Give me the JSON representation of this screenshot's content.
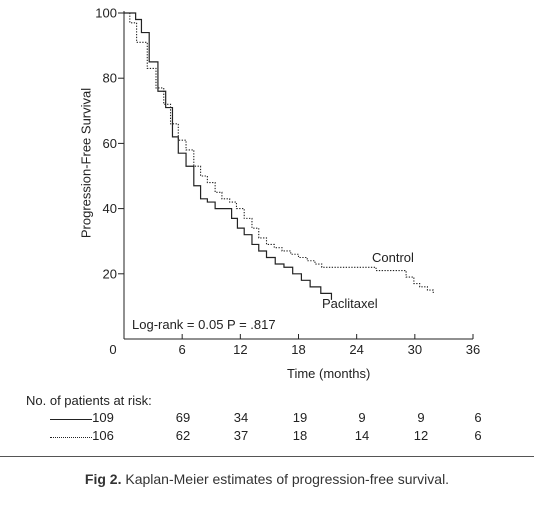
{
  "chart_data": {
    "type": "line",
    "title": "",
    "xlabel": "Time (months)",
    "ylabel": "Progression-Free Survival",
    "xlim": [
      0,
      36
    ],
    "ylim": [
      0,
      100
    ],
    "x_ticks": [
      "6",
      "12",
      "18",
      "24",
      "30",
      "36"
    ],
    "x_origin_label": "0",
    "y_ticks": [
      "20",
      "40",
      "60",
      "80",
      "100"
    ],
    "grid": false,
    "annotation": "Log-rank = 0.05 P = .817",
    "series": [
      {
        "name": "Paclitaxel",
        "line_style": "solid",
        "x": [
          0,
          1.2,
          1.8,
          2.6,
          3.5,
          4.3,
          5.0,
          5.6,
          6.4,
          7.2,
          7.9,
          8.6,
          9.4,
          11.1,
          11.7,
          12.4,
          13.2,
          13.9,
          14.7,
          15.6,
          16.5,
          17.4,
          18.3,
          19.2,
          20.3,
          21.4
        ],
        "y": [
          100,
          98,
          94,
          85,
          76,
          71,
          62,
          57,
          53,
          47,
          43,
          42,
          40,
          37,
          34,
          32,
          29,
          27,
          25,
          23,
          22,
          20,
          18,
          16,
          14,
          12
        ]
      },
      {
        "name": "Control",
        "line_style": "dotted",
        "x": [
          0,
          0.6,
          1.3,
          2.4,
          3.3,
          4.1,
          4.8,
          5.6,
          6.4,
          7.2,
          7.9,
          8.6,
          9.4,
          10.1,
          10.9,
          11.6,
          12.4,
          13.2,
          13.9,
          14.7,
          15.5,
          16.3,
          17.2,
          18.0,
          18.9,
          19.7,
          20.4,
          23.0,
          26.0,
          29.1,
          29.9,
          30.5,
          31.3,
          31.9
        ],
        "y": [
          100,
          97,
          91,
          83,
          77,
          72,
          66,
          61,
          58,
          53,
          50,
          48,
          45,
          43,
          42,
          40,
          37,
          34,
          31,
          29,
          28,
          27,
          26,
          25,
          24,
          23,
          22,
          22,
          21,
          19,
          17,
          16,
          15,
          14
        ]
      }
    ],
    "series_labels": [
      "Control",
      "Paclitaxel"
    ]
  },
  "risk_table": {
    "title": "No. of patients at risk:",
    "rows": [
      {
        "style": "solid",
        "values": [
          "109",
          "69",
          "34",
          "19",
          "9",
          "9",
          "6"
        ]
      },
      {
        "style": "dotted",
        "values": [
          "106",
          "62",
          "37",
          "18",
          "14",
          "12",
          "6"
        ]
      }
    ]
  },
  "caption": {
    "label": "Fig 2.",
    "text": " Kaplan-Meier estimates of progression-free survival."
  }
}
